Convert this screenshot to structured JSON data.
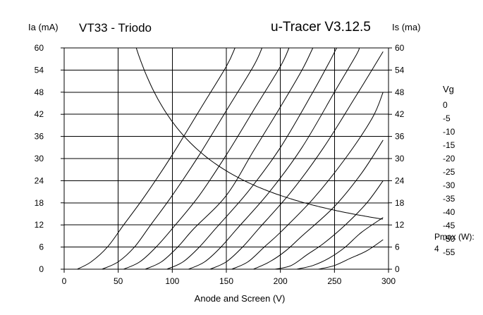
{
  "header": {
    "tube_name": "VT33 - Triodo",
    "app_name": "u-Tracer V3.12.5"
  },
  "legend": {
    "title": "Vg",
    "pmax_label": "Pmax (W):",
    "pmax_value": "4"
  },
  "colors": {
    "curve": "#000000",
    "grid": "#000000",
    "background": "#ffffff"
  },
  "chart_data": {
    "type": "line",
    "xlabel": "Anode and Screen (V)",
    "ylabel_left": "Ia (mA)",
    "ylabel_right": "Is (ma)",
    "xlim": [
      0,
      300
    ],
    "ylim": [
      0,
      60
    ],
    "x_ticks": [
      0,
      50,
      100,
      150,
      200,
      250,
      300
    ],
    "y_ticks": [
      0,
      6,
      12,
      18,
      24,
      30,
      36,
      42,
      48,
      54,
      60
    ],
    "grid": true,
    "legend_position": "right",
    "series": [
      {
        "name": "0",
        "points": [
          [
            12,
            0
          ],
          [
            25,
            2
          ],
          [
            40,
            6
          ],
          [
            55,
            12
          ],
          [
            75,
            20
          ],
          [
            100,
            31
          ],
          [
            125,
            43
          ],
          [
            150,
            55
          ],
          [
            158,
            60
          ]
        ]
      },
      {
        "name": "-5",
        "points": [
          [
            35,
            0
          ],
          [
            50,
            2
          ],
          [
            65,
            6
          ],
          [
            80,
            12
          ],
          [
            100,
            20
          ],
          [
            125,
            31
          ],
          [
            150,
            43
          ],
          [
            175,
            55
          ],
          [
            183,
            60
          ]
        ]
      },
      {
        "name": "-10",
        "points": [
          [
            55,
            0
          ],
          [
            70,
            2
          ],
          [
            85,
            6
          ],
          [
            100,
            11
          ],
          [
            125,
            20
          ],
          [
            150,
            31
          ],
          [
            175,
            43
          ],
          [
            200,
            55
          ],
          [
            208,
            60
          ]
        ]
      },
      {
        "name": "-15",
        "points": [
          [
            75,
            0
          ],
          [
            90,
            2
          ],
          [
            105,
            6
          ],
          [
            120,
            11
          ],
          [
            150,
            20
          ],
          [
            175,
            32
          ],
          [
            200,
            44
          ],
          [
            220,
            54
          ],
          [
            230,
            60
          ]
        ]
      },
      {
        "name": "-20",
        "points": [
          [
            95,
            0
          ],
          [
            110,
            2
          ],
          [
            125,
            6
          ],
          [
            140,
            11
          ],
          [
            170,
            21
          ],
          [
            200,
            33
          ],
          [
            230,
            48
          ],
          [
            245,
            56
          ],
          [
            252,
            60
          ]
        ]
      },
      {
        "name": "-25",
        "points": [
          [
            115,
            0
          ],
          [
            130,
            2
          ],
          [
            145,
            6
          ],
          [
            160,
            11
          ],
          [
            190,
            21
          ],
          [
            220,
            33
          ],
          [
            250,
            48
          ],
          [
            270,
            58
          ],
          [
            273,
            60
          ]
        ]
      },
      {
        "name": "-30",
        "points": [
          [
            135,
            0
          ],
          [
            150,
            2
          ],
          [
            165,
            6
          ],
          [
            180,
            11
          ],
          [
            210,
            21
          ],
          [
            240,
            33
          ],
          [
            270,
            47
          ],
          [
            295,
            59
          ]
        ]
      },
      {
        "name": "-35",
        "points": [
          [
            155,
            0
          ],
          [
            170,
            2
          ],
          [
            185,
            6
          ],
          [
            200,
            10
          ],
          [
            230,
            19
          ],
          [
            260,
            30
          ],
          [
            285,
            41
          ],
          [
            295,
            48
          ]
        ]
      },
      {
        "name": "-40",
        "points": [
          [
            175,
            0
          ],
          [
            190,
            2
          ],
          [
            205,
            5
          ],
          [
            220,
            9
          ],
          [
            250,
            17
          ],
          [
            275,
            26
          ],
          [
            295,
            35
          ]
        ]
      },
      {
        "name": "-45",
        "points": [
          [
            195,
            0
          ],
          [
            210,
            1
          ],
          [
            225,
            4
          ],
          [
            240,
            7
          ],
          [
            260,
            12
          ],
          [
            280,
            18
          ],
          [
            295,
            24
          ]
        ]
      },
      {
        "name": "-50",
        "points": [
          [
            215,
            0
          ],
          [
            230,
            1
          ],
          [
            245,
            3
          ],
          [
            260,
            6
          ],
          [
            275,
            10
          ],
          [
            295,
            14
          ]
        ]
      },
      {
        "name": "-55",
        "points": [
          [
            235,
            0
          ],
          [
            250,
            1
          ],
          [
            265,
            3
          ],
          [
            280,
            5
          ],
          [
            295,
            8
          ]
        ]
      }
    ],
    "pmax_curve": {
      "watts": 4,
      "x_from": 66.7,
      "x_to": 295
    }
  }
}
